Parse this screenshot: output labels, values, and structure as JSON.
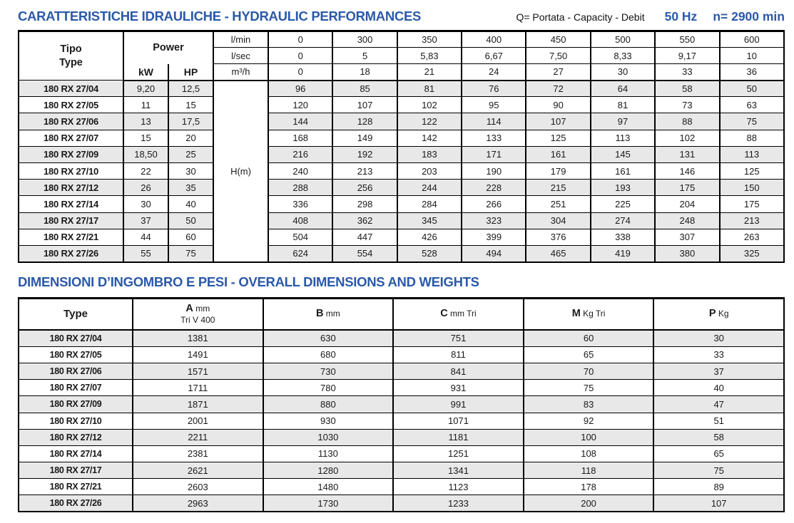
{
  "theme": {
    "accent_blue": "#2b59a8",
    "stripe_gray": "#e8e8e8",
    "border_black": "#000000"
  },
  "hydraulic": {
    "title": "CARATTERISTICHE IDRAULICHE - HYDRAULIC PERFORMANCES",
    "subtitle": "Q= Portata - Capacity - Debit",
    "frequency": "50 Hz",
    "speed": "n= 2900 min",
    "header": {
      "tipo": "Tipo",
      "type": "Type",
      "power": "Power",
      "kw": "kW",
      "hp": "HP",
      "head_label": "H(m)",
      "flow_rows": [
        {
          "unit": "l/min",
          "values": [
            "0",
            "300",
            "350",
            "400",
            "450",
            "500",
            "550",
            "600"
          ]
        },
        {
          "unit": "l/sec",
          "values": [
            "0",
            "5",
            "5,83",
            "6,67",
            "7,50",
            "8,33",
            "9,17",
            "10"
          ]
        },
        {
          "unit": "m³/h",
          "values": [
            "0",
            "18",
            "21",
            "24",
            "27",
            "30",
            "33",
            "36"
          ]
        }
      ]
    },
    "rows": [
      {
        "type": "180 RX 27/04",
        "kw": "9,20",
        "hp": "12,5",
        "h": [
          "96",
          "85",
          "81",
          "76",
          "72",
          "64",
          "58",
          "50"
        ]
      },
      {
        "type": "180 RX 27/05",
        "kw": "11",
        "hp": "15",
        "h": [
          "120",
          "107",
          "102",
          "95",
          "90",
          "81",
          "73",
          "63"
        ]
      },
      {
        "type": "180 RX 27/06",
        "kw": "13",
        "hp": "17,5",
        "h": [
          "144",
          "128",
          "122",
          "114",
          "107",
          "97",
          "88",
          "75"
        ]
      },
      {
        "type": "180 RX 27/07",
        "kw": "15",
        "hp": "20",
        "h": [
          "168",
          "149",
          "142",
          "133",
          "125",
          "113",
          "102",
          "88"
        ]
      },
      {
        "type": "180 RX 27/09",
        "kw": "18,50",
        "hp": "25",
        "h": [
          "216",
          "192",
          "183",
          "171",
          "161",
          "145",
          "131",
          "113"
        ]
      },
      {
        "type": "180 RX 27/10",
        "kw": "22",
        "hp": "30",
        "h": [
          "240",
          "213",
          "203",
          "190",
          "179",
          "161",
          "146",
          "125"
        ]
      },
      {
        "type": "180 RX 27/12",
        "kw": "26",
        "hp": "35",
        "h": [
          "288",
          "256",
          "244",
          "228",
          "215",
          "193",
          "175",
          "150"
        ]
      },
      {
        "type": "180 RX 27/14",
        "kw": "30",
        "hp": "40",
        "h": [
          "336",
          "298",
          "284",
          "266",
          "251",
          "225",
          "204",
          "175"
        ]
      },
      {
        "type": "180 RX 27/17",
        "kw": "37",
        "hp": "50",
        "h": [
          "408",
          "362",
          "345",
          "323",
          "304",
          "274",
          "248",
          "213"
        ]
      },
      {
        "type": "180 RX 27/21",
        "kw": "44",
        "hp": "60",
        "h": [
          "504",
          "447",
          "426",
          "399",
          "376",
          "338",
          "307",
          "263"
        ]
      },
      {
        "type": "180 RX 27/26",
        "kw": "55",
        "hp": "75",
        "h": [
          "624",
          "554",
          "528",
          "494",
          "465",
          "419",
          "380",
          "325"
        ]
      }
    ]
  },
  "dimensions": {
    "title": "DIMENSIONI D’INGOMBRO E PESI - OVERALL DIMENSIONS AND WEIGHTS",
    "header": {
      "type": "Type",
      "columns": [
        {
          "letter": "A",
          "unit": "mm",
          "sub": "Tri V 400"
        },
        {
          "letter": "B",
          "unit": "mm",
          "sub": ""
        },
        {
          "letter": "C",
          "unit": "mm Tri",
          "sub": ""
        },
        {
          "letter": "M",
          "unit": "Kg Tri",
          "sub": ""
        },
        {
          "letter": "P",
          "unit": "Kg",
          "sub": ""
        }
      ]
    },
    "rows": [
      {
        "type": "180 RX 27/04",
        "values": [
          "1381",
          "630",
          "751",
          "60",
          "30"
        ]
      },
      {
        "type": "180 RX 27/05",
        "values": [
          "1491",
          "680",
          "811",
          "65",
          "33"
        ]
      },
      {
        "type": "180 RX 27/06",
        "values": [
          "1571",
          "730",
          "841",
          "70",
          "37"
        ]
      },
      {
        "type": "180 RX 27/07",
        "values": [
          "1711",
          "780",
          "931",
          "75",
          "40"
        ]
      },
      {
        "type": "180 RX 27/09",
        "values": [
          "1871",
          "880",
          "991",
          "83",
          "47"
        ]
      },
      {
        "type": "180 RX 27/10",
        "values": [
          "2001",
          "930",
          "1071",
          "92",
          "51"
        ]
      },
      {
        "type": "180 RX 27/12",
        "values": [
          "2211",
          "1030",
          "1181",
          "100",
          "58"
        ]
      },
      {
        "type": "180 RX 27/14",
        "values": [
          "2381",
          "1130",
          "1251",
          "108",
          "65"
        ]
      },
      {
        "type": "180 RX 27/17",
        "values": [
          "2621",
          "1280",
          "1341",
          "118",
          "75"
        ]
      },
      {
        "type": "180 RX 27/21",
        "values": [
          "2603",
          "1480",
          "1123",
          "178",
          "89"
        ]
      },
      {
        "type": "180 RX 27/26",
        "values": [
          "2963",
          "1730",
          "1233",
          "200",
          "107"
        ]
      }
    ]
  }
}
